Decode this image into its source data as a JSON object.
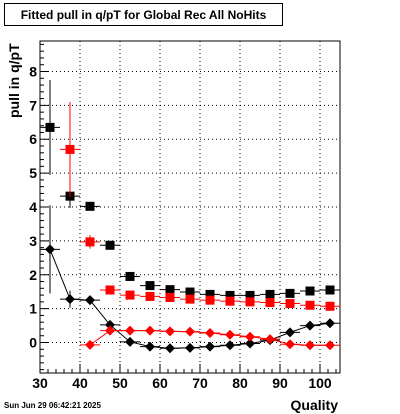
{
  "title": "Fitted pull in q/pT for Global Rec All NoHits",
  "timestamp": "Sun Jun 29 06:42:21 2025",
  "colors": {
    "black": "#000000",
    "red": "#ff0000",
    "grid": "#000000"
  },
  "chart_data": {
    "type": "scatter",
    "title": "Fitted pull in q/pT for Global Rec All NoHits",
    "xlabel": "Quality",
    "ylabel": "pull in q/pT",
    "xlim": [
      30,
      105
    ],
    "ylim": [
      -0.9,
      8.9
    ],
    "xticks": [
      30,
      40,
      50,
      60,
      70,
      80,
      90,
      100
    ],
    "yticks": [
      0,
      1,
      2,
      3,
      4,
      5,
      6,
      7,
      8
    ],
    "grid": true,
    "x_halfwidth": 2.5,
    "series": [
      {
        "marker": "square",
        "color": "black",
        "x": [
          32.5,
          37.5,
          42.5,
          47.5,
          52.5,
          57.5,
          62.5,
          67.5,
          72.5,
          77.5,
          82.5,
          87.5,
          92.5,
          97.5,
          102.5
        ],
        "y": [
          6.35,
          4.32,
          4.02,
          2.87,
          1.95,
          1.68,
          1.56,
          1.49,
          1.42,
          1.39,
          1.39,
          1.42,
          1.45,
          1.52,
          1.55
        ],
        "yerr": [
          1.4,
          0.35,
          0.12,
          0.1,
          0.06,
          0.05,
          0.05,
          0.04,
          0.04,
          0.04,
          0.04,
          0.04,
          0.05,
          0.05,
          0.06
        ]
      },
      {
        "marker": "square",
        "color": "red",
        "x": [
          37.5,
          42.5,
          47.5,
          52.5,
          57.5,
          62.5,
          67.5,
          72.5,
          77.5,
          82.5,
          87.5,
          92.5,
          97.5,
          102.5
        ],
        "y": [
          5.7,
          2.97,
          1.55,
          1.4,
          1.36,
          1.33,
          1.28,
          1.25,
          1.22,
          1.2,
          1.18,
          1.15,
          1.1,
          1.07
        ],
        "yerr": [
          1.4,
          0.2,
          0.08,
          0.06,
          0.05,
          0.05,
          0.05,
          0.05,
          0.05,
          0.05,
          0.05,
          0.05,
          0.05,
          0.05
        ]
      },
      {
        "marker": "diamond",
        "color": "black",
        "x": [
          32.5,
          37.5,
          42.5,
          47.5,
          52.5,
          57.5,
          62.5,
          67.5,
          72.5,
          77.5,
          82.5,
          87.5,
          92.5,
          97.5,
          102.5
        ],
        "y": [
          2.75,
          1.28,
          1.25,
          0.52,
          0.02,
          -0.12,
          -0.17,
          -0.16,
          -0.12,
          -0.08,
          -0.03,
          0.07,
          0.3,
          0.5,
          0.57
        ],
        "yerr": [
          1.3,
          0.25,
          0.1,
          0.06,
          0.04,
          0.04,
          0.04,
          0.04,
          0.04,
          0.04,
          0.04,
          0.04,
          0.04,
          0.04,
          0.04
        ]
      },
      {
        "marker": "diamond",
        "color": "red",
        "x": [
          42.5,
          47.5,
          52.5,
          57.5,
          62.5,
          67.5,
          72.5,
          77.5,
          82.5,
          87.5,
          92.5,
          97.5,
          102.5
        ],
        "y": [
          -0.07,
          0.35,
          0.35,
          0.35,
          0.33,
          0.32,
          0.28,
          0.23,
          0.17,
          0.1,
          -0.05,
          -0.08,
          -0.08
        ],
        "yerr": [
          0.1,
          0.06,
          0.05,
          0.05,
          0.05,
          0.05,
          0.05,
          0.05,
          0.05,
          0.05,
          0.05,
          0.05,
          0.05
        ]
      }
    ]
  }
}
